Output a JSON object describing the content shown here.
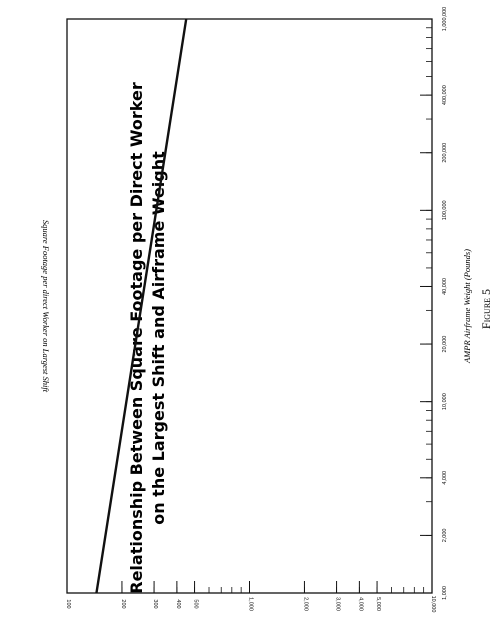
{
  "page": {
    "title_line1": "Relationship Between Square Footage per Direct Worker",
    "title_line2": "on the Largest Shift and Airframe Weight",
    "figure_caption": "Figure 5"
  },
  "chart_data": {
    "type": "line",
    "title": "Relationship Between Square Footage per Direct Worker on the Largest Shift and Airframe Weight",
    "xlabel": "AMPR Airframe Weight (Pounds)",
    "ylabel": "Square Footage per direct Worker on Largest Shift",
    "x_scale": "log",
    "y_scale": "log",
    "xlim": [
      1000,
      1000000
    ],
    "ylim": [
      100,
      10000
    ],
    "grid": false,
    "x_ticks": [
      1000,
      2000,
      4000,
      10000,
      20000,
      40000,
      100000,
      200000,
      400000,
      1000000
    ],
    "x_tick_labels": [
      "1,000",
      "2,000",
      "4,000",
      "10,000",
      "20,000",
      "40,000",
      "100,000",
      "200,000",
      "400,000",
      "1,000,000"
    ],
    "y_ticks": [
      100,
      200,
      300,
      400,
      500,
      1000,
      2000,
      3000,
      4000,
      5000,
      10000
    ],
    "y_tick_labels": [
      "100",
      "200",
      "300",
      "400",
      "500",
      "1,000",
      "2,000",
      "3,000",
      "4,000",
      "5,000",
      "10,000"
    ],
    "series": [
      {
        "x": [
          1000,
          1000000
        ],
        "y": [
          145,
          450
        ]
      }
    ],
    "colors": {
      "line": "#111111",
      "frame": "#111111"
    }
  }
}
